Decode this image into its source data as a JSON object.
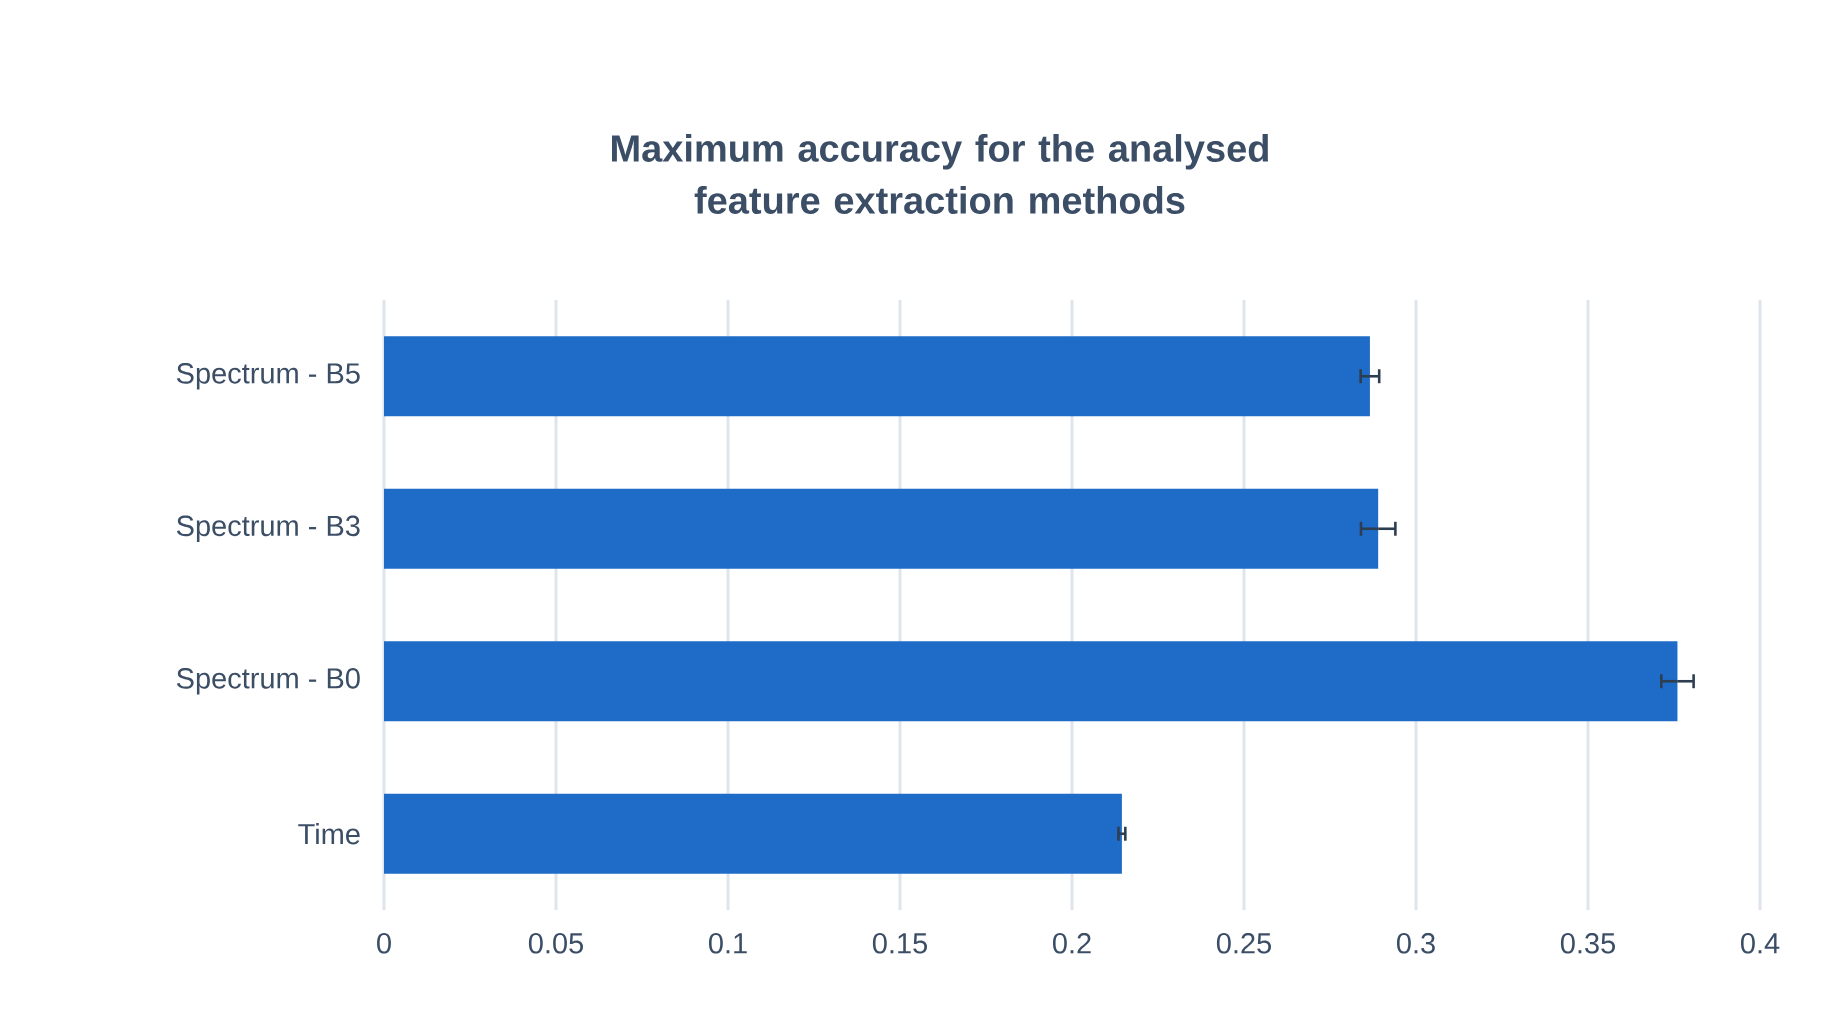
{
  "chart_data": {
    "type": "bar",
    "orientation": "horizontal",
    "title": "Maximum accuracy for the analysed feature extraction methods",
    "categories": [
      "Spectrum - B5",
      "Spectrum - B3",
      "Spectrum - B0",
      "Time"
    ],
    "values": [
      0.2866,
      0.289,
      0.376,
      0.2145
    ],
    "errors": [
      0.0027,
      0.005,
      0.0047,
      0.001
    ],
    "color": "#1e6cc8",
    "xlim": [
      0,
      0.4
    ],
    "xticks": [
      0,
      0.05,
      0.1,
      0.15,
      0.2,
      0.25,
      0.3,
      0.35,
      0.4
    ],
    "grid": "x"
  }
}
